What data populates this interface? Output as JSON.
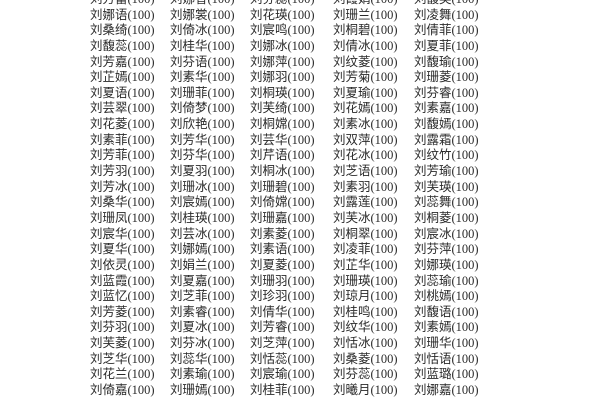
{
  "score_suffix": "(100)",
  "rows": [
    [
      "刘芳蕾",
      "刘娜香",
      "刘芬蕊",
      "刘霞娟",
      "刘馥英"
    ],
    [
      "刘娜语",
      "刘娜裳",
      "刘花瑛",
      "刘珊兰",
      "刘凌舞"
    ],
    [
      "刘桑绮",
      "刘倚冰",
      "刘宸鸣",
      "刘桐碧",
      "刘倩菲"
    ],
    [
      "刘馥蕊",
      "刘桂华",
      "刘娜冰",
      "刘倩冰",
      "刘夏菲"
    ],
    [
      "刘芳嘉",
      "刘芬语",
      "刘娜萍",
      "刘纹菱",
      "刘馥瑜"
    ],
    [
      "刘芷嫣",
      "刘素华",
      "刘娜羽",
      "刘芳菊",
      "刘珊菱"
    ],
    [
      "刘夏语",
      "刘珊菲",
      "刘桐瑛",
      "刘夏瑜",
      "刘芬睿"
    ],
    [
      "刘芸翠",
      "刘倚梦",
      "刘芙绮",
      "刘花嫣",
      "刘素嘉"
    ],
    [
      "刘花菱",
      "刘欣艳",
      "刘桐嫦",
      "刘素冰",
      "刘馥嫣"
    ],
    [
      "刘素菲",
      "刘芳华",
      "刘芸华",
      "刘双萍",
      "刘露霜"
    ],
    [
      "刘芳菲",
      "刘芬华",
      "刘芹语",
      "刘花冰",
      "刘纹竹"
    ],
    [
      "刘芳羽",
      "刘夏羽",
      "刘桐冰",
      "刘芝语",
      "刘芳瑜"
    ],
    [
      "刘芳冰",
      "刘珊冰",
      "刘珊碧",
      "刘素羽",
      "刘芙瑛"
    ],
    [
      "刘桑华",
      "刘宸嫣",
      "刘倚嫦",
      "刘露莲",
      "刘蕊舞"
    ],
    [
      "刘珊凤",
      "刘桂瑛",
      "刘珊嘉",
      "刘芙冰",
      "刘桐菱"
    ],
    [
      "刘宸华",
      "刘芸冰",
      "刘素菱",
      "刘桐翠",
      "刘宸冰"
    ],
    [
      "刘夏华",
      "刘娜嫣",
      "刘素语",
      "刘凌菲",
      "刘芬萍"
    ],
    [
      "刘依灵",
      "刘娟兰",
      "刘夏菱",
      "刘芷华",
      "刘娜瑛"
    ],
    [
      "刘蓝霞",
      "刘夏嘉",
      "刘珊羽",
      "刘珊瑛",
      "刘蕊瑜"
    ],
    [
      "刘蓝忆",
      "刘芝菲",
      "刘珍羽",
      "刘琼月",
      "刘桃嫣"
    ],
    [
      "刘芳菱",
      "刘素睿",
      "刘倩华",
      "刘桂鸣",
      "刘馥语"
    ],
    [
      "刘芬羽",
      "刘夏冰",
      "刘芳睿",
      "刘纹华",
      "刘素嫣"
    ],
    [
      "刘芙菱",
      "刘芬冰",
      "刘芝萍",
      "刘恬冰",
      "刘珊华"
    ],
    [
      "刘芝华",
      "刘蕊华",
      "刘恬蕊",
      "刘桑菱",
      "刘恬语"
    ],
    [
      "刘花兰",
      "刘素瑜",
      "刘宸瑜",
      "刘芬蕊",
      "刘蓝璐"
    ],
    [
      "刘倚嘉",
      "刘珊嫣",
      "刘桂菲",
      "刘曦月",
      "刘娜嘉"
    ]
  ]
}
